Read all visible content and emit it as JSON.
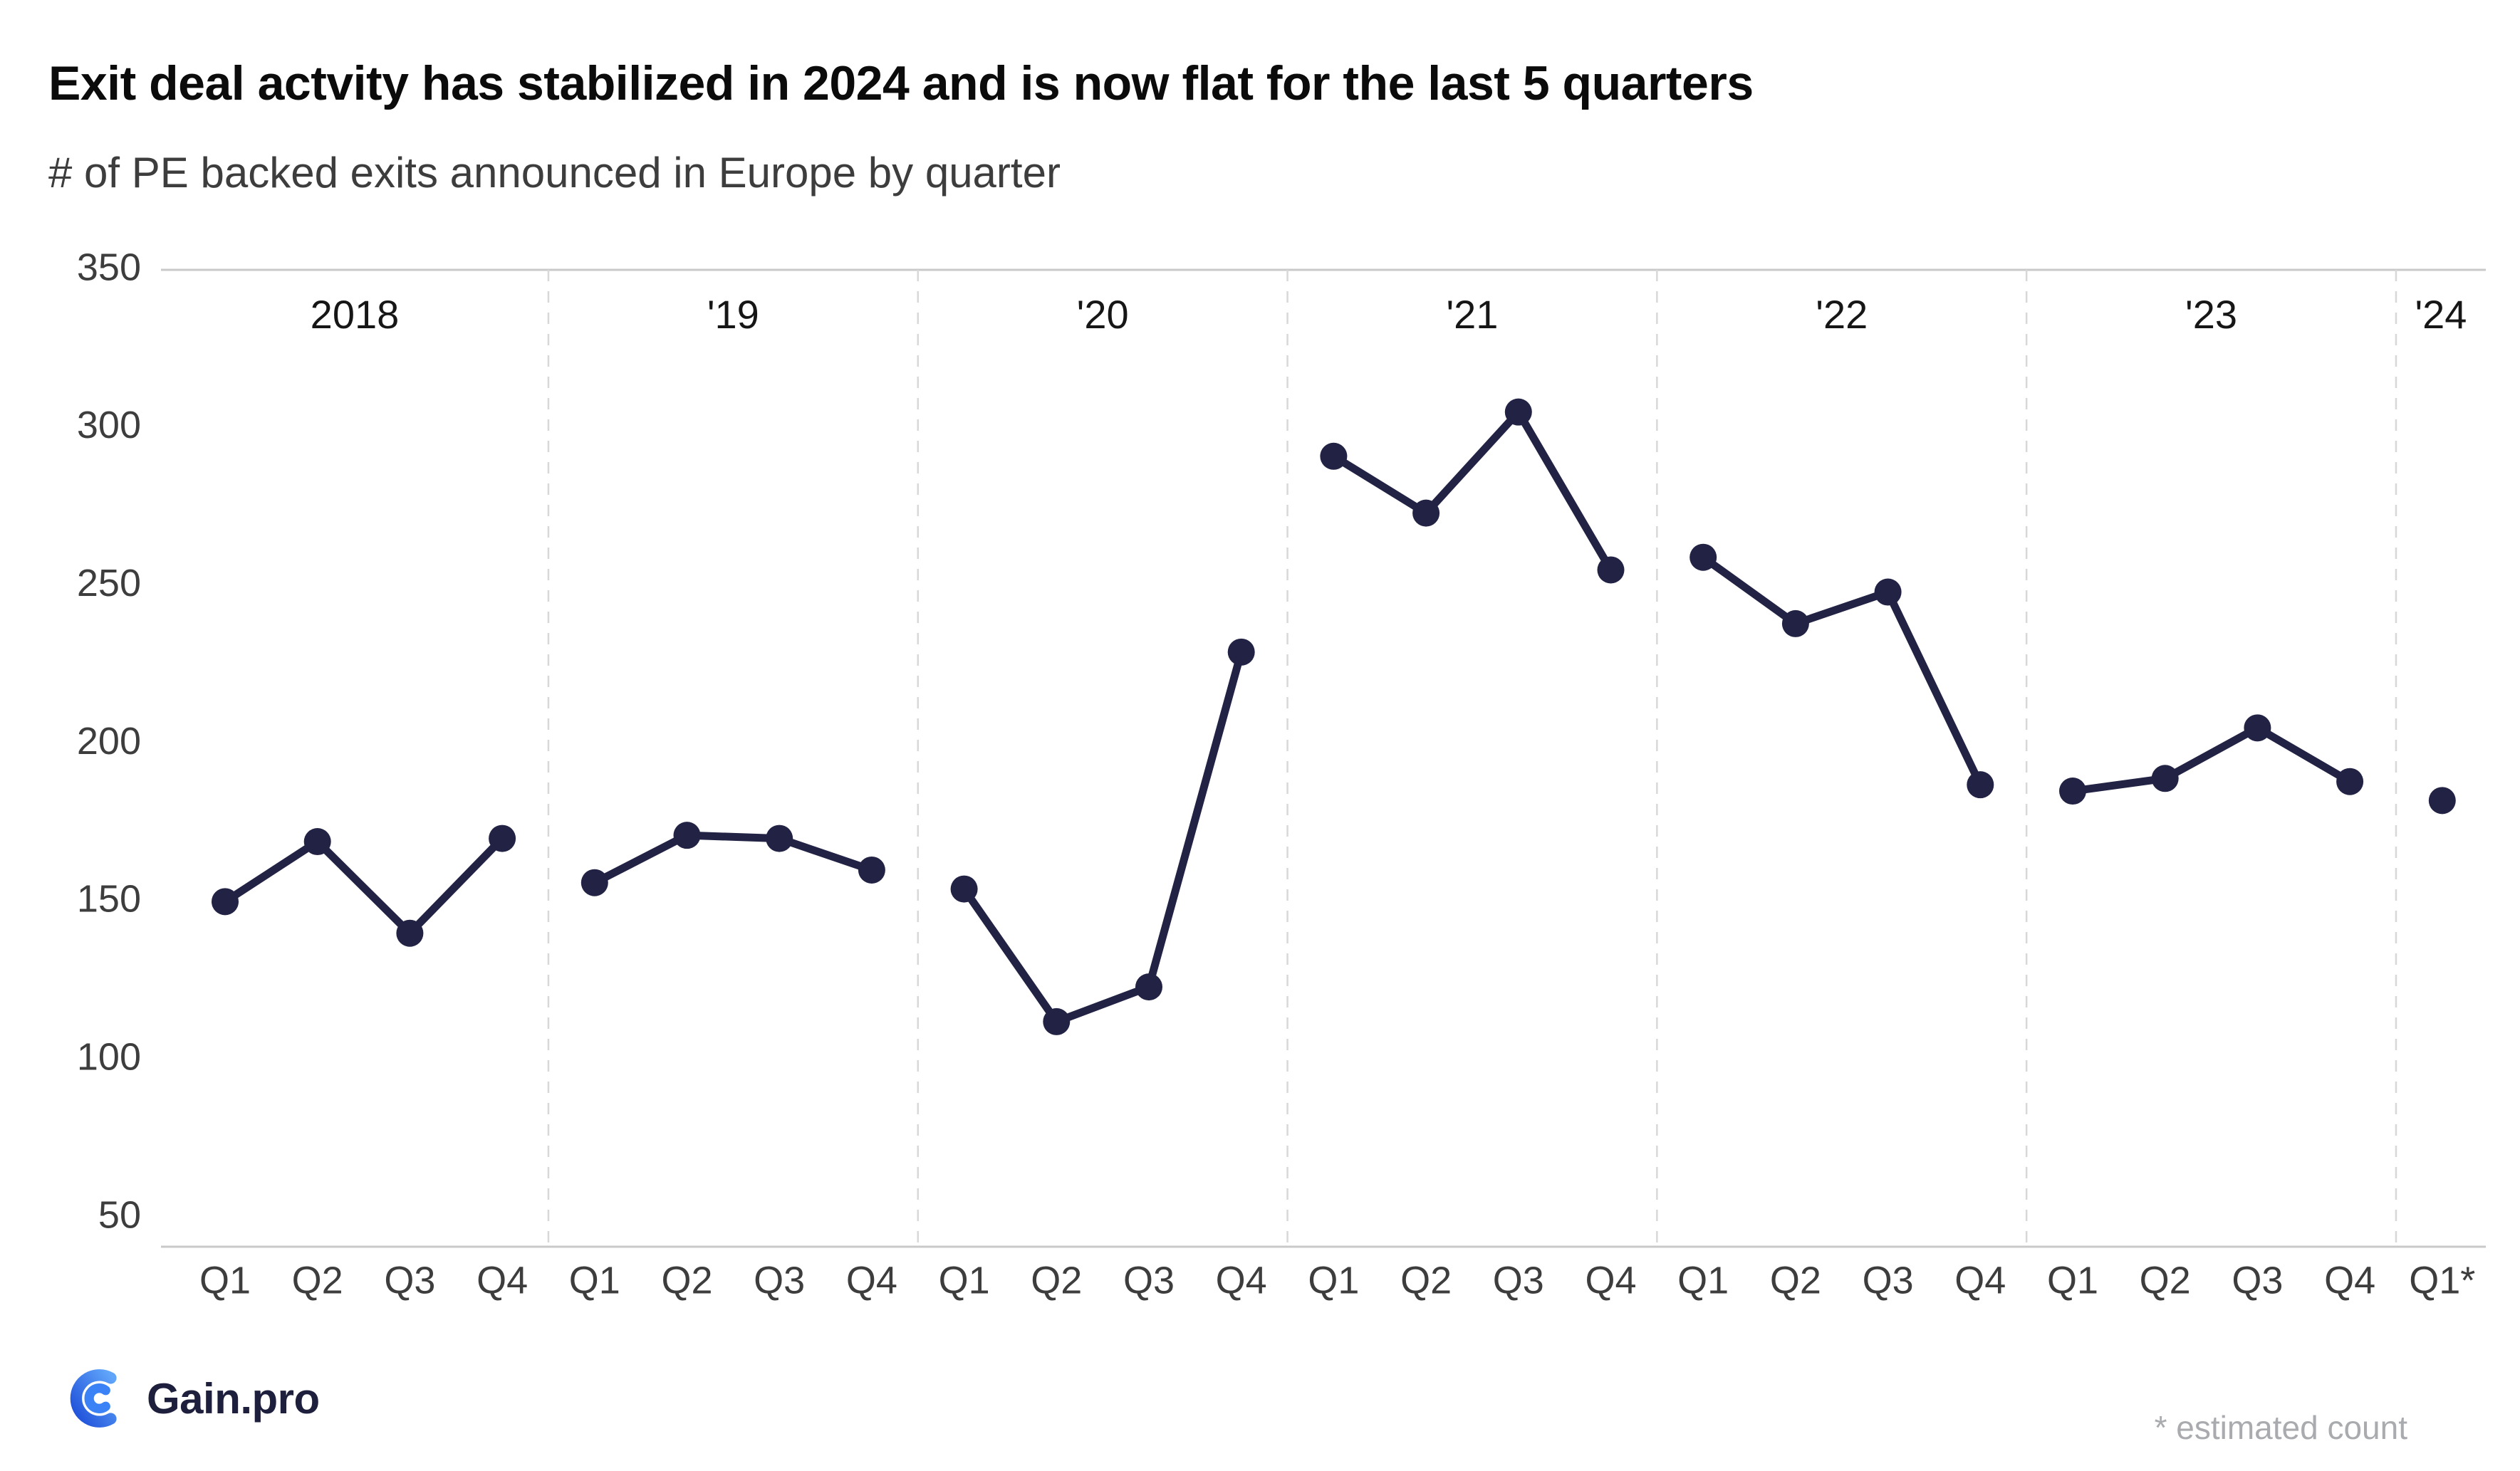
{
  "header": {
    "title": "Exit deal actvity has stabilized in 2024 and is now flat for the last 5 quarters",
    "subtitle": "# of PE backed exits announced in Europe by quarter"
  },
  "footer": {
    "logo_text": "Gain.pro",
    "logo_icon": "gainpro-logo-icon",
    "note": "* estimated count"
  },
  "colors": {
    "series": "#222244",
    "title_text": "#0b0b0b",
    "subtitle_text": "#3d3d3d",
    "axis_text": "#3d3d3d",
    "year_text": "#161616",
    "gridline": "#c9c9c9",
    "separator": "#d8d8d8",
    "logo_blue_dark": "#1d4ed8",
    "logo_blue_light": "#60a5fa",
    "footnote_text": "#a9abae"
  },
  "chart_data": {
    "type": "line",
    "title": "Exit deal actvity has stabilized in 2024 and is now flat for the last 5 quarters",
    "subtitle": "# of PE backed exits announced in Europe by quarter",
    "xlabel": "",
    "ylabel": "",
    "ylim": [
      50,
      350
    ],
    "yticks": [
      350,
      300,
      250,
      200,
      150,
      100,
      50
    ],
    "grid": "horizontal line at 350 and x-axis baseline only; dashed vertical separators between year groups; lines connect quarters within a year but break between years",
    "legend": "none",
    "line_color": "#222244",
    "point_color": "#222244",
    "groups": [
      {
        "year_label": "2018",
        "categories": [
          "Q1",
          "Q2",
          "Q3",
          "Q4"
        ],
        "values": [
          150,
          169,
          140,
          170
        ]
      },
      {
        "year_label": "'19",
        "categories": [
          "Q1",
          "Q2",
          "Q3",
          "Q4"
        ],
        "values": [
          156,
          171,
          170,
          160
        ]
      },
      {
        "year_label": "'20",
        "categories": [
          "Q1",
          "Q2",
          "Q3",
          "Q4"
        ],
        "values": [
          154,
          112,
          123,
          229
        ]
      },
      {
        "year_label": "'21",
        "categories": [
          "Q1",
          "Q2",
          "Q3",
          "Q4"
        ],
        "values": [
          291,
          273,
          305,
          255
        ]
      },
      {
        "year_label": "'22",
        "categories": [
          "Q1",
          "Q2",
          "Q3",
          "Q4"
        ],
        "values": [
          259,
          238,
          248,
          187
        ]
      },
      {
        "year_label": "'23",
        "categories": [
          "Q1",
          "Q2",
          "Q3",
          "Q4"
        ],
        "values": [
          185,
          189,
          205,
          188
        ]
      },
      {
        "year_label": "'24",
        "categories": [
          "Q1*"
        ],
        "values": [
          182
        ]
      }
    ],
    "footnote": "* estimated count"
  }
}
